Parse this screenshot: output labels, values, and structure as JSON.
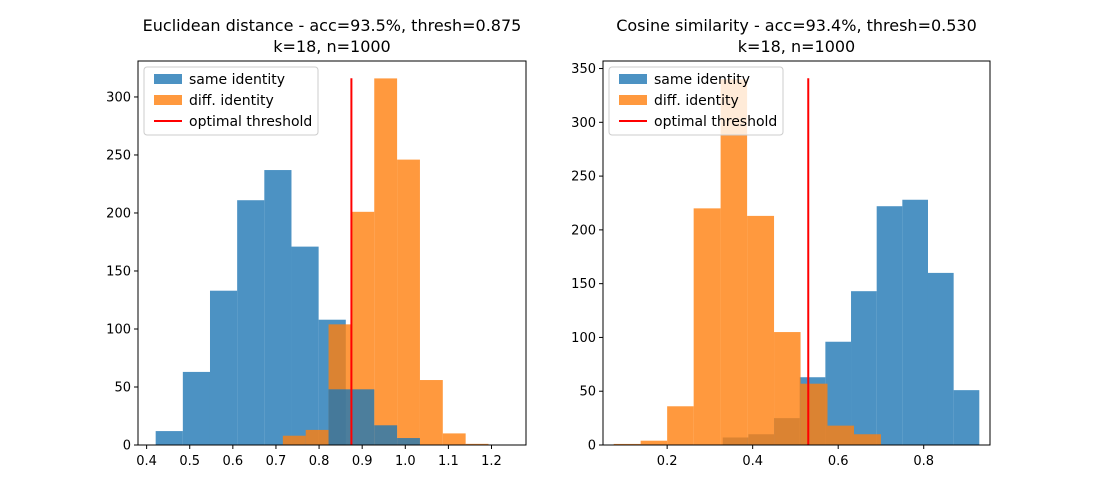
{
  "chart_data": [
    {
      "type": "histogram",
      "title": "Euclidean distance - acc=93.5%, thresh=0.875",
      "subtitle": "k=18, n=1000",
      "xlim": [
        0.38,
        1.28
      ],
      "ylim": [
        0,
        331
      ],
      "xticks": [
        "0.4",
        "0.5",
        "0.6",
        "0.7",
        "0.8",
        "0.9",
        "1.0",
        "1.1",
        "1.2"
      ],
      "yticks": [
        "0",
        "50",
        "100",
        "150",
        "200",
        "250",
        "300"
      ],
      "legend_position": "top-left",
      "legend": [
        "same identity",
        "diff. identity",
        "optimal threshold"
      ],
      "threshold": 0.875,
      "series": [
        {
          "name": "same identity",
          "color": "#1f77b4",
          "bin_edges": [
            0.421,
            0.484,
            0.547,
            0.61,
            0.673,
            0.736,
            0.799,
            0.862
          ],
          "values": [
            12,
            63,
            133,
            211,
            237,
            171,
            108
          ]
        },
        {
          "name": "diff. identity",
          "color": "#ff7f0e",
          "bin_edges": [
            0.716,
            0.769,
            0.822,
            0.875,
            0.928,
            0.981,
            1.034,
            1.087,
            1.14,
            1.193,
            1.246
          ],
          "values": [
            8,
            13,
            104,
            201,
            316,
            246,
            56,
            10,
            1,
            0
          ]
        },
        {
          "name": "same identity",
          "color": "#1f77b4",
          "bin_edges": [
            0.822,
            0.875,
            0.928,
            0.981,
            1.034
          ],
          "values": [
            48,
            48,
            17,
            6
          ]
        }
      ]
    },
    {
      "type": "histogram",
      "title": "Cosine similarity - acc=93.4%, thresh=0.530",
      "subtitle": "k=18, n=1000",
      "xlim": [
        0.05,
        0.955
      ],
      "ylim": [
        0,
        357
      ],
      "xticks": [
        "0.2",
        "0.4",
        "0.6",
        "0.8"
      ],
      "yticks": [
        "0",
        "50",
        "100",
        "150",
        "200",
        "250",
        "300",
        "350"
      ],
      "legend_position": "top-left",
      "legend": [
        "same identity",
        "diff. identity",
        "optimal threshold"
      ],
      "threshold": 0.53,
      "series": [
        {
          "name": "same identity",
          "color": "#1f77b4",
          "bin_edges": [
            0.33,
            0.39,
            0.45,
            0.51,
            0.57,
            0.63,
            0.69,
            0.75,
            0.81,
            0.87,
            0.93
          ],
          "values": [
            7,
            10,
            25,
            63,
            96,
            143,
            222,
            228,
            160,
            51
          ]
        },
        {
          "name": "diff. identity",
          "color": "#ff7f0e",
          "bin_edges": [
            0.075,
            0.138,
            0.2,
            0.262,
            0.325,
            0.387,
            0.45,
            0.512,
            0.575,
            0.637,
            0.7
          ],
          "values": [
            1,
            4,
            36,
            220,
            340,
            213,
            105,
            57,
            18,
            10
          ]
        }
      ]
    }
  ]
}
